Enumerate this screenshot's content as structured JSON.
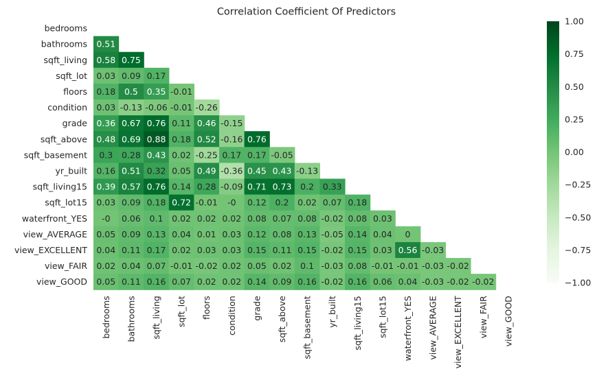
{
  "chart_data": {
    "type": "heatmap",
    "title": "Correlation Coefficient Of Predictors",
    "xlabel": "",
    "ylabel": "",
    "labels": [
      "bedrooms",
      "bathrooms",
      "sqft_living",
      "sqft_lot",
      "floors",
      "condition",
      "grade",
      "sqft_above",
      "sqft_basement",
      "yr_built",
      "sqft_living15",
      "sqft_lot15",
      "waterfront_YES",
      "view_AVERAGE",
      "view_EXCELLENT",
      "view_FAIR",
      "view_GOOD"
    ],
    "lower_triangle_values": [
      [],
      [
        0.51
      ],
      [
        0.58,
        0.75
      ],
      [
        0.03,
        0.09,
        0.17
      ],
      [
        0.18,
        0.5,
        0.35,
        -0.01
      ],
      [
        0.03,
        -0.13,
        -0.06,
        -0.01,
        -0.26
      ],
      [
        0.36,
        0.67,
        0.76,
        0.11,
        0.46,
        -0.15
      ],
      [
        0.48,
        0.69,
        0.88,
        0.18,
        0.52,
        -0.16,
        0.76
      ],
      [
        0.3,
        0.28,
        0.43,
        0.02,
        -0.25,
        0.17,
        0.17,
        -0.05
      ],
      [
        0.16,
        0.51,
        0.32,
        0.05,
        0.49,
        -0.36,
        0.45,
        0.43,
        -0.13
      ],
      [
        0.39,
        0.57,
        0.76,
        0.14,
        0.28,
        -0.09,
        0.71,
        0.73,
        0.2,
        0.33
      ],
      [
        0.03,
        0.09,
        0.18,
        0.72,
        -0.01,
        "-0",
        0.12,
        0.2,
        0.02,
        0.07,
        0.18
      ],
      [
        "-0",
        0.06,
        0.1,
        0.02,
        0.02,
        0.02,
        0.08,
        0.07,
        0.08,
        -0.02,
        0.08,
        0.03
      ],
      [
        0.05,
        0.09,
        0.13,
        0.04,
        0.01,
        0.03,
        0.12,
        0.08,
        0.13,
        -0.05,
        0.14,
        0.04,
        0
      ],
      [
        0.04,
        0.11,
        0.17,
        0.02,
        0.03,
        0.03,
        0.15,
        0.11,
        0.15,
        -0.02,
        0.15,
        0.03,
        0.56,
        -0.03
      ],
      [
        0.02,
        0.04,
        0.07,
        -0.01,
        -0.02,
        0.02,
        0.05,
        0.02,
        0.1,
        -0.03,
        0.08,
        -0.01,
        -0.01,
        -0.03,
        -0.02
      ],
      [
        0.05,
        0.11,
        0.16,
        0.07,
        0.02,
        0.02,
        0.14,
        0.09,
        0.16,
        -0.02,
        0.16,
        0.06,
        0.04,
        -0.03,
        -0.02,
        -0.02
      ]
    ],
    "colorbar": {
      "min": -1.0,
      "max": 1.0,
      "ticks": [
        "1.00",
        "0.75",
        "0.50",
        "0.25",
        "0.00",
        "−0.25",
        "−0.50",
        "−0.75",
        "−1.00"
      ],
      "colormap": "Greens",
      "low_color": "#f7fcf5",
      "high_color": "#00441b"
    },
    "grid": false,
    "annotations": true,
    "mask": "upper-triangle"
  }
}
